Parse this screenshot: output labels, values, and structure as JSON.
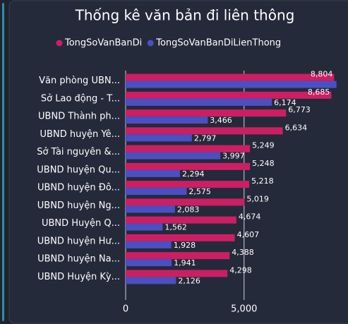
{
  "chart_data": {
    "type": "bar",
    "orientation": "horizontal",
    "title": "Thống kê văn bản đi liên thông",
    "categories": [
      "Văn phòng UBN...",
      "Sở Lao động - T...",
      "UBND Thành ph...",
      "UBND huyện Yê...",
      "Sở Tài nguyên &...",
      "UBND huyện Qu...",
      "UBND huyện Đô...",
      "UBND huyện Ng...",
      "UBND Huyện Q...",
      "UBND huyện Hư...",
      "UBND huyện Na...",
      "UBND Huyện Kỳ..."
    ],
    "series": [
      {
        "name": "TongSoVanBanDi",
        "color": "#cc1f63",
        "values": [
          8804,
          8685,
          6773,
          6634,
          5249,
          5248,
          5218,
          5019,
          4674,
          4607,
          4388,
          4298
        ],
        "value_labels": [
          "8,804",
          "8,685",
          "6,773",
          "6,634",
          "5,249",
          "5,248",
          "5,218",
          "5,019",
          "4,674",
          "4,607",
          "4,388",
          "4,298"
        ]
      },
      {
        "name": "TongSoVanBanDiLienThong",
        "color": "#4a4fc2",
        "values": [
          8900,
          6174,
          3466,
          2797,
          3997,
          2294,
          2575,
          2083,
          1562,
          1928,
          1941,
          2126
        ],
        "value_labels": [
          null,
          "6,174",
          "3,466",
          "2,797",
          "3,997",
          "2,294",
          "2,575",
          "2,083",
          "1,562",
          "1,928",
          "1,941",
          "2,126"
        ]
      }
    ],
    "xlim": [
      0,
      9000
    ],
    "xticks": [
      0,
      {
        "value": 5000,
        "label": "5,000"
      }
    ],
    "grid": true
  }
}
